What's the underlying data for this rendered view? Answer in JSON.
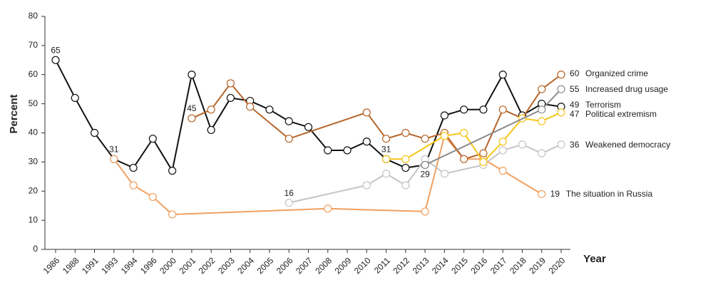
{
  "chart_data": {
    "type": "line",
    "ylabel": "Percent",
    "xlabel": "Year",
    "categories": [
      "1986",
      "1988",
      "1991",
      "1993",
      "1994",
      "1996",
      "2000",
      "2001",
      "2002",
      "2003",
      "2004",
      "2005",
      "2006",
      "2007",
      "2008",
      "2009",
      "2010",
      "2011",
      "2012",
      "2013",
      "2014",
      "2015",
      "2016",
      "2017",
      "2018",
      "2019",
      "2020"
    ],
    "ylim": [
      0,
      80
    ],
    "yticks": [
      0,
      10,
      20,
      30,
      40,
      50,
      60,
      70,
      80
    ],
    "series": [
      {
        "name": "Terrorism",
        "color": "#111111",
        "x": [
          "1986",
          "1988",
          "1991",
          "1993",
          "1994",
          "1996",
          "2000",
          "2001",
          "2002",
          "2003",
          "2004",
          "2005",
          "2006",
          "2007",
          "2008",
          "2009",
          "2010",
          "2011",
          "2012",
          "2013",
          "2014",
          "2015",
          "2016",
          "2017",
          "2018",
          "2019",
          "2020"
        ],
        "values": [
          65,
          52,
          40,
          31,
          28,
          38,
          27,
          60,
          41,
          52,
          51,
          48,
          44,
          42,
          34,
          34,
          37,
          31,
          28,
          29,
          46,
          48,
          48,
          60,
          46,
          50,
          49
        ]
      },
      {
        "name": "The situation in Russia",
        "color": "#f0a060",
        "x": [
          "1993",
          "1994",
          "1996",
          "2000",
          "2008",
          "2013",
          "2014",
          "2015",
          "2016",
          "2017",
          "2019"
        ],
        "values": [
          31,
          22,
          18,
          12,
          14,
          13,
          39,
          31,
          31,
          27,
          19
        ]
      },
      {
        "name": "Organized crime",
        "color": "#b5652b",
        "x": [
          "2001",
          "2002",
          "2003",
          "2004",
          "2006",
          "2010",
          "2011",
          "2012",
          "2013",
          "2014",
          "2015",
          "2016",
          "2017",
          "2018",
          "2019",
          "2020"
        ],
        "values": [
          45,
          48,
          57,
          49,
          38,
          47,
          38,
          40,
          38,
          40,
          31,
          33,
          48,
          45,
          55,
          60
        ]
      },
      {
        "name": "Weakened democracy",
        "color": "#c4c4c4",
        "x": [
          "2006",
          "2010",
          "2011",
          "2012",
          "2013",
          "2014",
          "2016",
          "2017",
          "2018",
          "2019",
          "2020"
        ],
        "values": [
          16,
          22,
          26,
          22,
          31,
          26,
          29,
          34,
          36,
          33,
          36
        ]
      },
      {
        "name": "Political extremism",
        "color": "#f5c518",
        "x": [
          "2011",
          "2012",
          "2014",
          "2015",
          "2016",
          "2017",
          "2018",
          "2019",
          "2020"
        ],
        "values": [
          31,
          31,
          39,
          40,
          30,
          37,
          45,
          44,
          47
        ]
      },
      {
        "name": "Increased drug usage",
        "color": "#8c8c8c",
        "x": [
          "2013",
          "2019",
          "2020"
        ],
        "values": [
          29,
          48,
          55
        ]
      }
    ]
  }
}
